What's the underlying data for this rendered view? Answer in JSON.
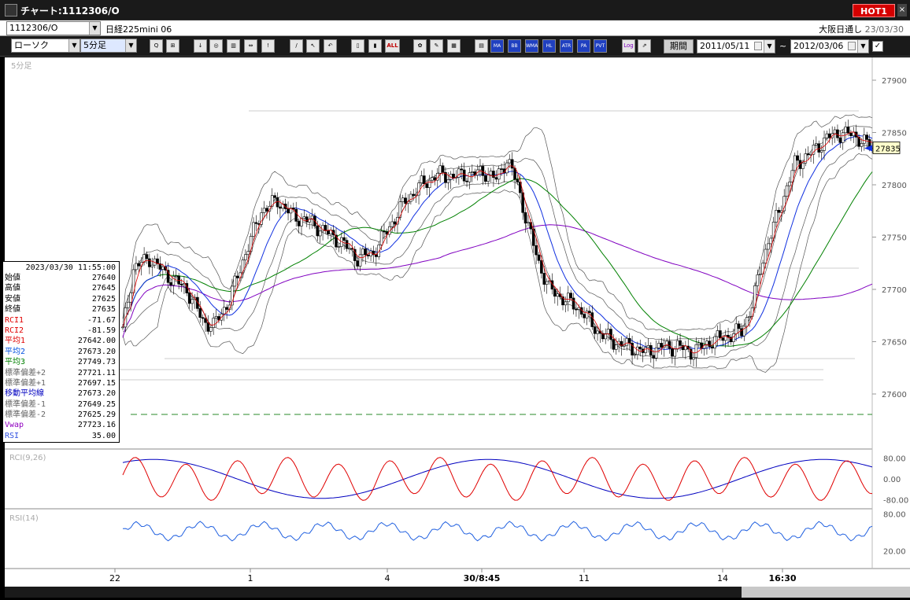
{
  "window": {
    "title": "チャート:1112306/O",
    "hot_label": "HOT1",
    "close_label": "×"
  },
  "symbol_bar": {
    "code": "1112306/O",
    "name": "日経225mini 06",
    "right_label": "大阪日通し",
    "date": "23/03/30"
  },
  "toolbar": {
    "chart_type": "ローソク",
    "interval": "5分足",
    "text_buttons": [
      "MA",
      "BB",
      "WMA",
      "HL",
      "ATR",
      "PA CA",
      "PVT",
      "Log"
    ],
    "all_label": "ALL",
    "period_button": "期間",
    "date_from": "2011/05/11",
    "tilde": "~",
    "date_to": "2012/03/06",
    "check": "✓"
  },
  "chart": {
    "interval_label": "5分足",
    "last_price_tag": "27835",
    "price_ticks": [
      "27900",
      "27850",
      "27800",
      "27750",
      "27700",
      "27650",
      "27600"
    ],
    "x_ticks": [
      "22",
      "1",
      "4",
      "30/8:45",
      "11",
      "14",
      "16:30"
    ],
    "rci_label": "RCI(9,26)",
    "rci_ticks": [
      "80.00",
      "0.00",
      "-80.00"
    ],
    "rsi_label": "RSI(14)",
    "rsi_ticks": [
      "80.00",
      "20.00"
    ]
  },
  "info_panel": {
    "datetime": "2023/03/30  11:55:00",
    "rows": [
      {
        "k": "始値",
        "v": "27640",
        "c": "#000000"
      },
      {
        "k": "高値",
        "v": "27645",
        "c": "#000000"
      },
      {
        "k": "安値",
        "v": "27625",
        "c": "#000000"
      },
      {
        "k": "終値",
        "v": "27635",
        "c": "#000000"
      },
      {
        "k": "RCI1",
        "v": "-71.67",
        "c": "#e00000"
      },
      {
        "k": "RCI2",
        "v": "-81.59",
        "c": "#e00000"
      },
      {
        "k": "平均1",
        "v": "27642.00",
        "c": "#e00000"
      },
      {
        "k": "平均2",
        "v": "27673.20",
        "c": "#0050e0"
      },
      {
        "k": "平均3",
        "v": "27749.73",
        "c": "#008000"
      },
      {
        "k": "標準偏差+2",
        "v": "27721.11",
        "c": "#666666"
      },
      {
        "k": "標準偏差+1",
        "v": "27697.15",
        "c": "#666666"
      },
      {
        "k": "移動平均線",
        "v": "27673.20",
        "c": "#0000c0"
      },
      {
        "k": "標準偏差-1",
        "v": "27649.25",
        "c": "#666666"
      },
      {
        "k": "標準偏差-2",
        "v": "27625.29",
        "c": "#666666"
      },
      {
        "k": "Vwap",
        "v": "27723.16",
        "c": "#9000c0"
      },
      {
        "k": "RSI",
        "v": "35.00",
        "c": "#3050e0"
      }
    ]
  },
  "colors": {
    "ma1": "#e00000",
    "ma2": "#1030e0",
    "ma3": "#008000",
    "band": "#555555",
    "vwap": "#8000c0",
    "rsi": "#2060e0",
    "rci_fast": "#e00000",
    "rci_slow": "#0000c0"
  },
  "chart_data": {
    "type": "candlestick",
    "ylim": [
      27590,
      27915
    ],
    "series_price_anchors": [
      [
        0,
        27660
      ],
      [
        4,
        27720
      ],
      [
        10,
        27730
      ],
      [
        16,
        27715
      ],
      [
        24,
        27700
      ],
      [
        30,
        27670
      ],
      [
        34,
        27665
      ],
      [
        40,
        27690
      ],
      [
        46,
        27735
      ],
      [
        52,
        27775
      ],
      [
        58,
        27785
      ],
      [
        64,
        27770
      ],
      [
        70,
        27765
      ],
      [
        76,
        27755
      ],
      [
        82,
        27745
      ],
      [
        88,
        27730
      ],
      [
        94,
        27735
      ],
      [
        100,
        27760
      ],
      [
        106,
        27785
      ],
      [
        112,
        27800
      ],
      [
        118,
        27810
      ],
      [
        124,
        27808
      ],
      [
        130,
        27810
      ],
      [
        136,
        27812
      ],
      [
        140,
        27805
      ],
      [
        144,
        27825
      ],
      [
        148,
        27800
      ],
      [
        152,
        27760
      ],
      [
        156,
        27725
      ],
      [
        160,
        27700
      ],
      [
        166,
        27690
      ],
      [
        172,
        27680
      ],
      [
        178,
        27660
      ],
      [
        184,
        27650
      ],
      [
        190,
        27645
      ],
      [
        196,
        27640
      ],
      [
        202,
        27645
      ],
      [
        208,
        27645
      ],
      [
        214,
        27640
      ],
      [
        220,
        27650
      ],
      [
        226,
        27655
      ],
      [
        232,
        27660
      ],
      [
        236,
        27685
      ],
      [
        240,
        27730
      ],
      [
        244,
        27760
      ],
      [
        248,
        27790
      ],
      [
        252,
        27820
      ],
      [
        258,
        27830
      ],
      [
        264,
        27845
      ],
      [
        270,
        27850
      ],
      [
        276,
        27845
      ],
      [
        281,
        27835
      ]
    ]
  }
}
